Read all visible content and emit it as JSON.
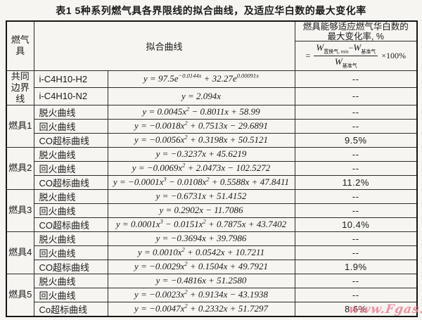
{
  "title": "表1  5种系列燃气具各界限线的拟合曲线，及适应华白数的最大变化率",
  "header": {
    "appliance": "燃气具",
    "fit_curve": "拟合曲线",
    "rate_title_line1": "燃具能够适应燃气华白数的",
    "rate_title_line2": "最大变化率, %",
    "formula": {
      "equals": "=",
      "w": "W",
      "num_left_sub": "置换气, min",
      "minus": "−",
      "num_right_sub": "基准气",
      "den_w": "W",
      "den_sub": "基准气",
      "times": "×100%"
    }
  },
  "groups": [
    {
      "label_lines": [
        "共同",
        "边界线"
      ],
      "rows": [
        {
          "curve": "i-C4H10-H2",
          "equation": "y = 97.5e^{−0.0144x} + 32.27e^{0.00091x}",
          "rate": "--"
        },
        {
          "curve": "i-C4H10-N2",
          "equation": "y = 2.094x",
          "rate": "--"
        }
      ]
    },
    {
      "label_lines": [
        "燃具1"
      ],
      "rows": [
        {
          "curve": "脱火曲线",
          "equation": "y = 0.0045x^{2} − 0.8011x + 58.99",
          "rate": "--"
        },
        {
          "curve": "回火曲线",
          "equation": "y = −0.0018x^{2} + 0.7513x − 29.6891",
          "rate": "--"
        },
        {
          "curve": "CO超标曲线",
          "equation": "y = −0.0056x^{2} + 0.3198x + 50.5121",
          "rate": "9.5%"
        }
      ]
    },
    {
      "label_lines": [
        "燃具2"
      ],
      "rows": [
        {
          "curve": "脱火曲线",
          "equation": "y = −0.3237x + 45.6219",
          "rate": "--"
        },
        {
          "curve": "回火曲线",
          "equation": "y = −0.0069x^{2} + 2.0473x − 102.5272",
          "rate": "--"
        },
        {
          "curve": "CO超标曲线",
          "equation": "y = −0.0001x^{3} − 0.0108x^{2} + 0.5588x + 47.8411",
          "rate": "11.2%"
        }
      ]
    },
    {
      "label_lines": [
        "燃具3"
      ],
      "rows": [
        {
          "curve": "脱火曲线",
          "equation": "y = −0.6731x + 51.4152",
          "rate": "--"
        },
        {
          "curve": "回火曲线",
          "equation": "y = 0.2902x − 11.7086",
          "rate": "--"
        },
        {
          "curve": "CO超标曲线",
          "equation": "y = 0.0001x^{3} − 0.0151x^{2} + 0.7875x + 43.7402",
          "rate": "10.4%"
        }
      ]
    },
    {
      "label_lines": [
        "燃具4"
      ],
      "rows": [
        {
          "curve": "脱火曲线",
          "equation": "y = −0.3694x + 39.7986",
          "rate": "--"
        },
        {
          "curve": "回火曲线",
          "equation": "y = 0.0010x^{2} + 0.0542x + 10.7211",
          "rate": "--"
        },
        {
          "curve": "CO超标曲线",
          "equation": "y = −0.0029x^{2} + 0.1504x + 49.7921",
          "rate": "1.9%"
        }
      ]
    },
    {
      "label_lines": [
        "燃具5"
      ],
      "rows": [
        {
          "curve": "脱火曲线",
          "equation": "y = −0.4816x + 51.2580",
          "rate": "--"
        },
        {
          "curve": "回火曲线",
          "equation": "y = −0.0023x^{2} + 0.9134x − 43.1938",
          "rate": "--"
        },
        {
          "curve": "Co超标曲线",
          "equation": "y = −0.0047x^{2} + 0.2332x + 51.7297",
          "rate": "8.6%"
        }
      ]
    }
  ],
  "watermark": "www.Fgas.cn",
  "colors": {
    "watermark": "#ef8094",
    "border": "#2b2b2b",
    "background": "#f6f5f1"
  }
}
